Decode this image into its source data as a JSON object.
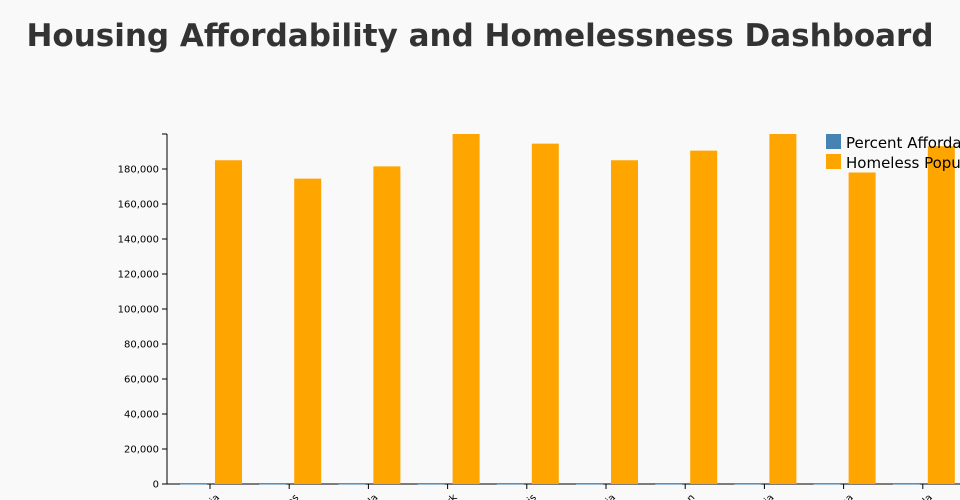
{
  "page": {
    "title": "Housing Affordability and Homelessness Dashboard"
  },
  "colors": {
    "percent_affordable": "#4682b4",
    "homeless_population": "#ffa500",
    "axis": "#000000",
    "background": "#f9f9f9",
    "title": "#333333"
  },
  "chart_data": {
    "type": "bar",
    "title": "Housing Affordability and Homelessness Dashboard",
    "xlabel": "",
    "ylabel": "",
    "ylim": [
      0,
      200000
    ],
    "y_ticks": [
      0,
      20000,
      40000,
      60000,
      80000,
      100000,
      120000,
      140000,
      160000,
      180000
    ],
    "y_tick_labels": [
      "0",
      "20,000",
      "40,000",
      "60,000",
      "80,000",
      "100,000",
      "120,000",
      "140,000",
      "160,000",
      "180,000"
    ],
    "grid": false,
    "legend_position": "top-right",
    "categories": [
      "ia",
      "as",
      "da",
      "rk",
      "nis",
      "nia",
      "on",
      "nia",
      "na",
      "da"
    ],
    "series": [
      {
        "name": "Percent Afforda",
        "color": "#4682b4",
        "values": [
          50,
          45,
          48,
          40,
          42,
          47,
          44,
          46,
          49,
          43
        ]
      },
      {
        "name": "Homeless Popu",
        "color": "#ffa500",
        "values": [
          185000,
          174500,
          181500,
          200000,
          194500,
          185000,
          190500,
          200000,
          178000,
          193000
        ]
      }
    ]
  }
}
